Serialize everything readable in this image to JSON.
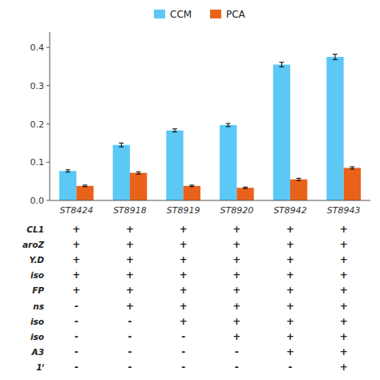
{
  "chart_data": {
    "type": "bar",
    "categories": [
      "ST8424",
      "ST8918",
      "ST8919",
      "ST8920",
      "ST8942",
      "ST8943"
    ],
    "series": [
      {
        "name": "CCM",
        "color": "#5BC8F5",
        "values": [
          0.077,
          0.145,
          0.183,
          0.197,
          0.355,
          0.375
        ],
        "errors": [
          0.003,
          0.005,
          0.004,
          0.004,
          0.006,
          0.007
        ]
      },
      {
        "name": "PCA",
        "color": "#E8621A",
        "values": [
          0.038,
          0.072,
          0.038,
          0.033,
          0.055,
          0.085
        ],
        "errors": [
          0.002,
          0.003,
          0.002,
          0.002,
          0.003,
          0.003
        ]
      }
    ],
    "ylim": [
      0,
      0.44
    ],
    "yticks": [
      {
        "value": 0.0,
        "label": "0.0"
      },
      0.1,
      0.2,
      0.3,
      0.4
    ],
    "legend": "top",
    "table": {
      "row_labels": [
        "CL1",
        "aroZ",
        "Y.D",
        "iso",
        "FP",
        "ns",
        "iso",
        "iso",
        "A3",
        "1ᴵ"
      ],
      "rows": [
        [
          "+",
          "+",
          "+",
          "+",
          "+",
          "+"
        ],
        [
          "+",
          "+",
          "+",
          "+",
          "+",
          "+"
        ],
        [
          "+",
          "+",
          "+",
          "+",
          "+",
          "+"
        ],
        [
          "+",
          "+",
          "+",
          "+",
          "+",
          "+"
        ],
        [
          "+",
          "+",
          "+",
          "+",
          "+",
          "+"
        ],
        [
          "-",
          "+",
          "+",
          "+",
          "+",
          "+"
        ],
        [
          "-",
          "-",
          "+",
          "+",
          "+",
          "+"
        ],
        [
          "-",
          "-",
          "-",
          "+",
          "+",
          "+"
        ],
        [
          "-",
          "-",
          "-",
          "-",
          "+",
          "+"
        ],
        [
          "-",
          "-",
          "-",
          "-",
          "-",
          "+"
        ]
      ]
    }
  }
}
